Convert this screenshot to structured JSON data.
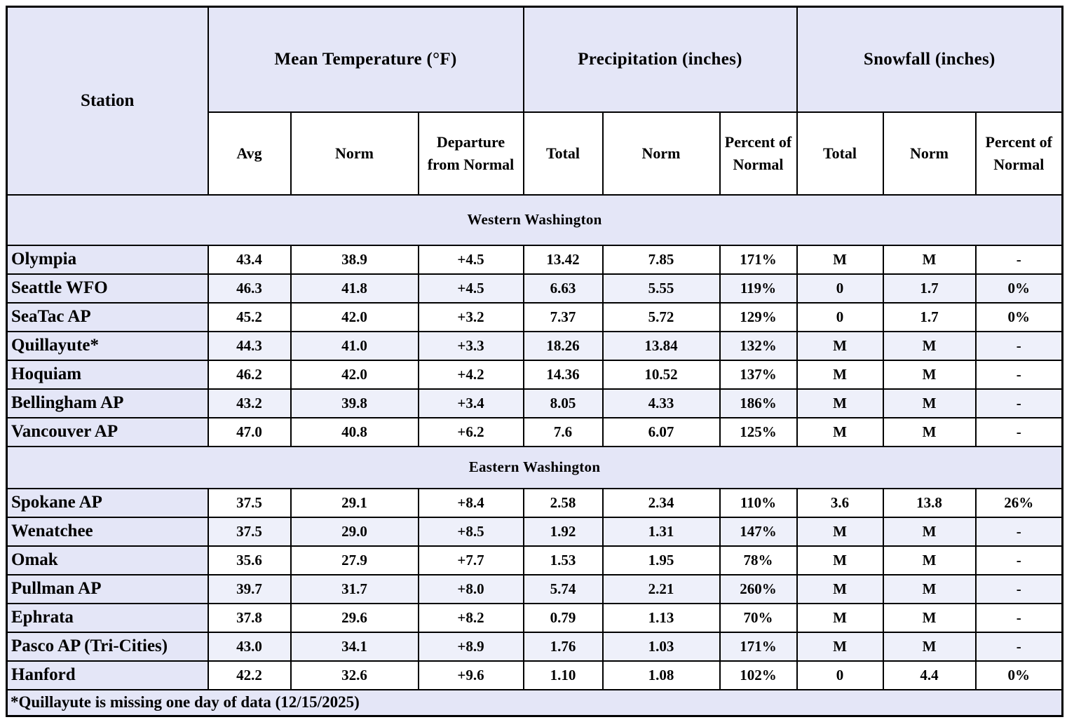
{
  "table": {
    "header": {
      "station_label": "Station",
      "groups": [
        {
          "label": "Mean Temperature (°F)",
          "sub": [
            "Avg",
            "Norm",
            "Departure from Normal"
          ]
        },
        {
          "label": "Precipitation (inches)",
          "sub": [
            "Total",
            "Norm",
            "Percent of Normal"
          ]
        },
        {
          "label": "Snowfall (inches)",
          "sub": [
            "Total",
            "Norm",
            "Percent of Normal"
          ]
        }
      ]
    },
    "sections": [
      {
        "label": "Western Washington",
        "rows": [
          {
            "station": "Olympia",
            "temp_avg": "43.4",
            "temp_norm": "38.9",
            "temp_dep": "+4.5",
            "precip_total": "13.42",
            "precip_norm": "7.85",
            "precip_pct": "171%",
            "snow_total": "M",
            "snow_norm": "M",
            "snow_pct": "-"
          },
          {
            "station": "Seattle WFO",
            "temp_avg": "46.3",
            "temp_norm": "41.8",
            "temp_dep": "+4.5",
            "precip_total": "6.63",
            "precip_norm": "5.55",
            "precip_pct": "119%",
            "snow_total": "0",
            "snow_norm": "1.7",
            "snow_pct": "0%"
          },
          {
            "station": "SeaTac AP",
            "temp_avg": "45.2",
            "temp_norm": "42.0",
            "temp_dep": "+3.2",
            "precip_total": "7.37",
            "precip_norm": "5.72",
            "precip_pct": "129%",
            "snow_total": "0",
            "snow_norm": "1.7",
            "snow_pct": "0%"
          },
          {
            "station": "Quillayute*",
            "temp_avg": "44.3",
            "temp_norm": "41.0",
            "temp_dep": "+3.3",
            "precip_total": "18.26",
            "precip_norm": "13.84",
            "precip_pct": "132%",
            "snow_total": "M",
            "snow_norm": "M",
            "snow_pct": "-"
          },
          {
            "station": "Hoquiam",
            "temp_avg": "46.2",
            "temp_norm": "42.0",
            "temp_dep": "+4.2",
            "precip_total": "14.36",
            "precip_norm": "10.52",
            "precip_pct": "137%",
            "snow_total": "M",
            "snow_norm": "M",
            "snow_pct": "-"
          },
          {
            "station": "Bellingham AP",
            "temp_avg": "43.2",
            "temp_norm": "39.8",
            "temp_dep": "+3.4",
            "precip_total": "8.05",
            "precip_norm": "4.33",
            "precip_pct": "186%",
            "snow_total": "M",
            "snow_norm": "M",
            "snow_pct": "-"
          },
          {
            "station": "Vancouver AP",
            "temp_avg": "47.0",
            "temp_norm": "40.8",
            "temp_dep": "+6.2",
            "precip_total": "7.6",
            "precip_norm": "6.07",
            "precip_pct": "125%",
            "snow_total": "M",
            "snow_norm": "M",
            "snow_pct": "-"
          }
        ]
      },
      {
        "label": "Eastern Washington",
        "rows": [
          {
            "station": "Spokane AP",
            "temp_avg": "37.5",
            "temp_norm": "29.1",
            "temp_dep": "+8.4",
            "precip_total": "2.58",
            "precip_norm": "2.34",
            "precip_pct": "110%",
            "snow_total": "3.6",
            "snow_norm": "13.8",
            "snow_pct": "26%"
          },
          {
            "station": "Wenatchee",
            "temp_avg": "37.5",
            "temp_norm": "29.0",
            "temp_dep": "+8.5",
            "precip_total": "1.92",
            "precip_norm": "1.31",
            "precip_pct": "147%",
            "snow_total": "M",
            "snow_norm": "M",
            "snow_pct": "-"
          },
          {
            "station": "Omak",
            "temp_avg": "35.6",
            "temp_norm": "27.9",
            "temp_dep": "+7.7",
            "precip_total": "1.53",
            "precip_norm": "1.95",
            "precip_pct": "78%",
            "snow_total": "M",
            "snow_norm": "M",
            "snow_pct": "-"
          },
          {
            "station": "Pullman AP",
            "temp_avg": "39.7",
            "temp_norm": "31.7",
            "temp_dep": "+8.0",
            "precip_total": "5.74",
            "precip_norm": "2.21",
            "precip_pct": "260%",
            "snow_total": "M",
            "snow_norm": "M",
            "snow_pct": "-"
          },
          {
            "station": "Ephrata",
            "temp_avg": "37.8",
            "temp_norm": "29.6",
            "temp_dep": "+8.2",
            "precip_total": "0.79",
            "precip_norm": "1.13",
            "precip_pct": "70%",
            "snow_total": "M",
            "snow_norm": "M",
            "snow_pct": "-"
          },
          {
            "station": "Pasco AP (Tri-Cities)",
            "temp_avg": "43.0",
            "temp_norm": "34.1",
            "temp_dep": "+8.9",
            "precip_total": "1.76",
            "precip_norm": "1.03",
            "precip_pct": "171%",
            "snow_total": "M",
            "snow_norm": "M",
            "snow_pct": "-"
          },
          {
            "station": "Hanford",
            "temp_avg": "42.2",
            "temp_norm": "32.6",
            "temp_dep": "+9.6",
            "precip_total": "1.10",
            "precip_norm": "1.08",
            "precip_pct": "102%",
            "snow_total": "0",
            "snow_norm": "4.4",
            "snow_pct": "0%"
          }
        ]
      }
    ],
    "footnote": "*Quillayute is missing one day of data (12/15/2025)",
    "colors": {
      "header_bg": "#E4E6F7",
      "stripe_bg": "#EEF0FA",
      "border": "#000000"
    }
  }
}
